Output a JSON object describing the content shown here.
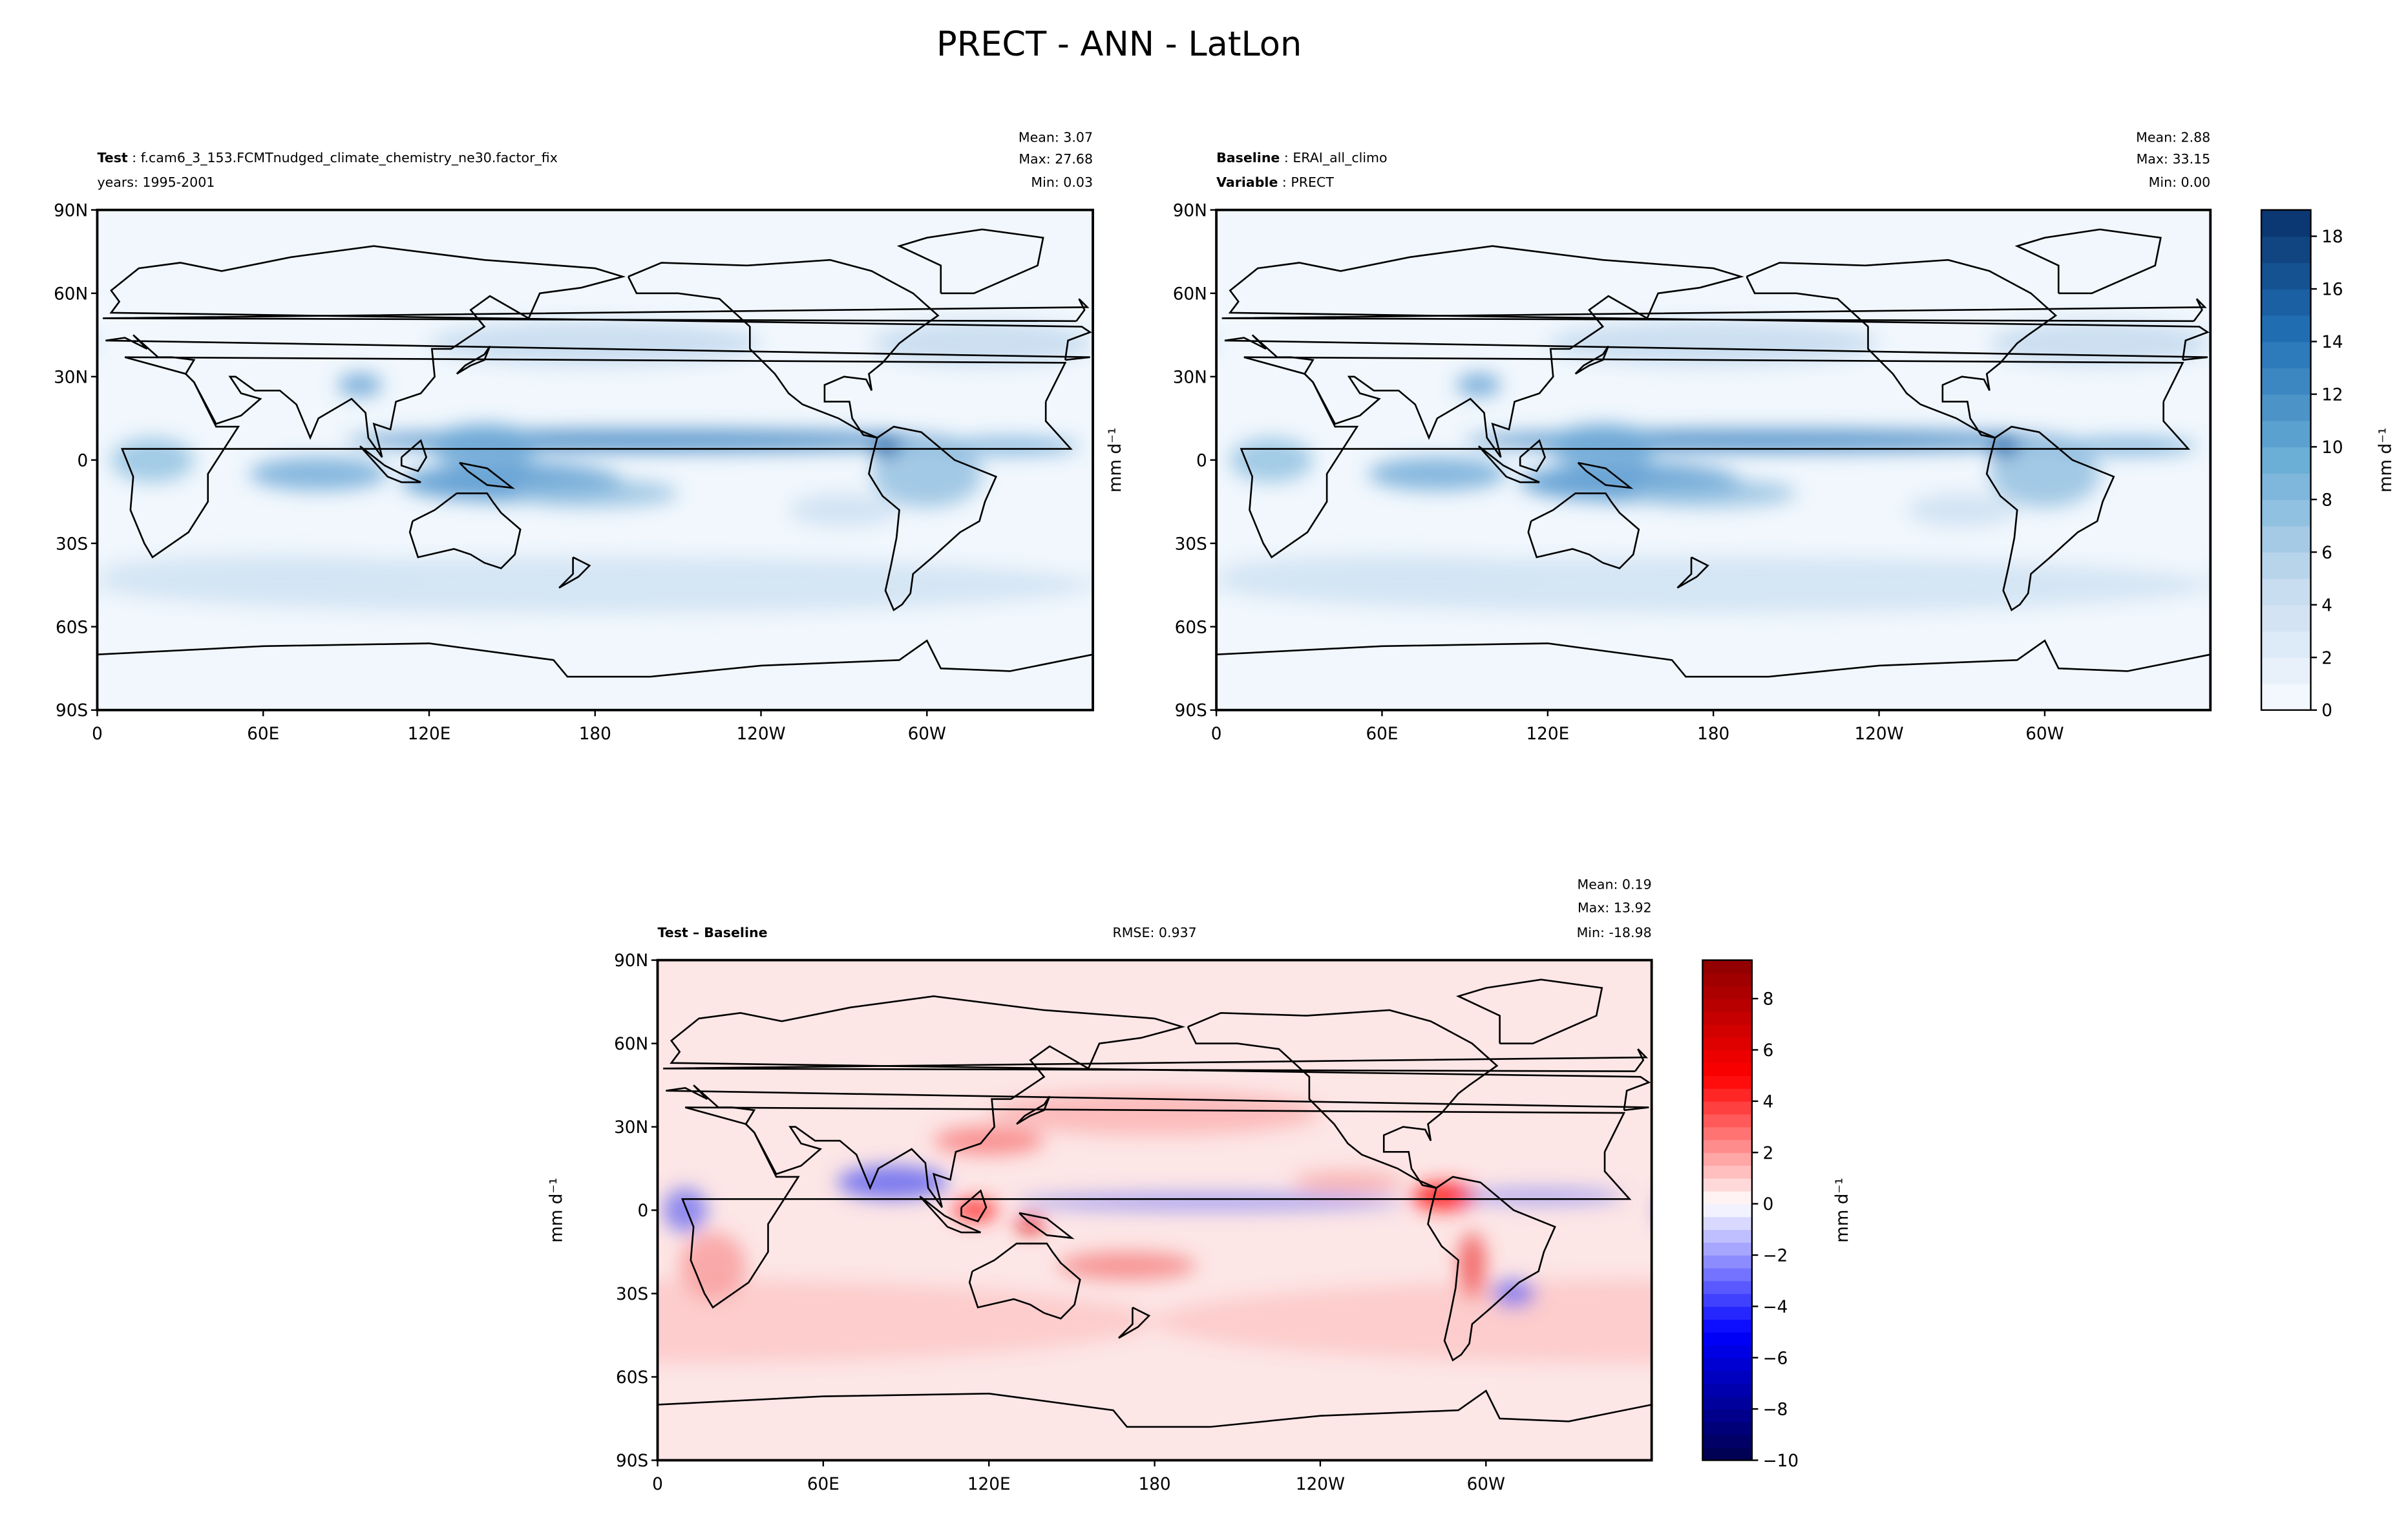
{
  "title": "PRECT - ANN - LatLon",
  "panels": [
    {
      "id": "test",
      "header_lines": [
        {
          "bold": "Test",
          "text": " : f.cam6_3_153.FCMTnudged_climate_chemistry_ne30.factor_fix"
        },
        {
          "bold": "",
          "text": "years: 1995-2001"
        }
      ],
      "stats": [
        "Mean:  3.07",
        "Max: 27.68",
        "Min:  0.03"
      ],
      "ylabel": "",
      "colorbar": "precip"
    },
    {
      "id": "baseline",
      "header_lines": [
        {
          "bold": "Baseline",
          "text": " : ERAI_all_climo"
        },
        {
          "bold": "Variable",
          "text": " : PRECT"
        }
      ],
      "stats": [
        "Mean:  2.88",
        "Max: 33.15",
        "Min:  0.00"
      ],
      "ylabel": "mm d⁻¹",
      "colorbar": "precip"
    },
    {
      "id": "diff",
      "header_lines": [
        {
          "bold": "Test – Baseline",
          "text": ""
        }
      ],
      "rmse": "RMSE: 0.937",
      "stats": [
        "Mean:  0.19",
        "Max: 13.92",
        "Min: -18.98"
      ],
      "ylabel": "mm d⁻¹",
      "colorbar": "diff"
    }
  ],
  "axes": {
    "lat_ticks": [
      "90N",
      "60N",
      "30N",
      "0",
      "30S",
      "60S",
      "90S"
    ],
    "lon_ticks": [
      "0",
      "60E",
      "120E",
      "180",
      "120W",
      "60W"
    ]
  },
  "colorbars": {
    "precip": {
      "label": "mm d⁻¹",
      "range": [
        0,
        19
      ],
      "step": 1,
      "ticks": [
        "0",
        "2",
        "4",
        "6",
        "8",
        "10",
        "12",
        "14",
        "16",
        "18"
      ],
      "colormap": "Blues",
      "low_color": "#f7fbff",
      "high_color": "#08306b"
    },
    "diff": {
      "label": "mm d⁻¹",
      "range": [
        -10,
        9.5
      ],
      "step": 0.5,
      "ticks": [
        "−10",
        "−8",
        "−6",
        "−4",
        "−2",
        "0",
        "2",
        "4",
        "6",
        "8"
      ],
      "colormap": "seismic",
      "low_color": "#00004c",
      "high_color": "#800000"
    }
  },
  "chart_data": {
    "type": "heatmap",
    "title": "PRECT - ANN - LatLon",
    "projection": "PlateCarree, central longitude 180",
    "xlim": [
      "0",
      "360"
    ],
    "ylim": [
      "90S",
      "90N"
    ],
    "grid": false,
    "maps": [
      "Test",
      "Baseline",
      "Test – Baseline"
    ]
  }
}
